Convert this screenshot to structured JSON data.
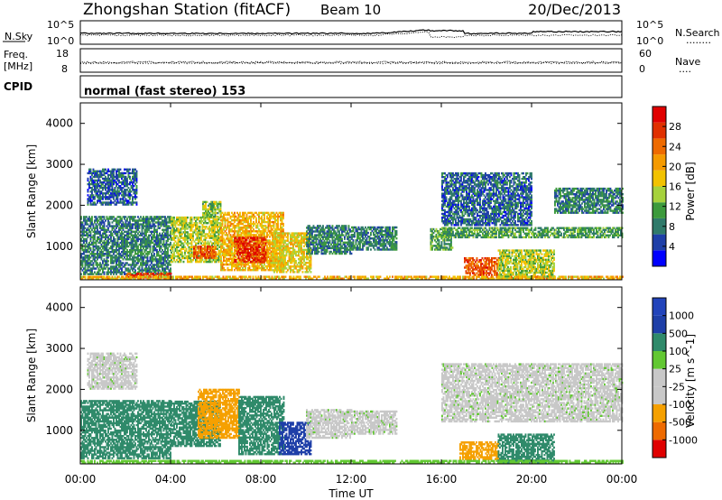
{
  "header": {
    "station": "Zhongshan Station (fitACF)",
    "beam": "Beam 10",
    "date": "20/Dec/2013"
  },
  "top_strip": {
    "left_label": "N.Sky",
    "left_ticks": [
      "10^5",
      "10^0"
    ],
    "right_ticks": [
      "10^5",
      "10^0"
    ],
    "right_label": "N.Search",
    "right_key": "........"
  },
  "freq_strip": {
    "left_label_1": "Freq.",
    "left_label_2": "[MHz]",
    "left_ticks": [
      "18",
      "8"
    ],
    "right_ticks": [
      "60",
      "0"
    ],
    "right_label": "Nave",
    "right_key": "...."
  },
  "cpid": {
    "label": "CPID",
    "value": "normal (fast stereo) 153"
  },
  "colors": {
    "power_scale": [
      "#0000ff",
      "#1e3fa8",
      "#2f7a6a",
      "#3c9a3c",
      "#a6d23c",
      "#f2c200",
      "#f59a00",
      "#ee6a00",
      "#e03000",
      "#e00000"
    ],
    "velocity_scale": [
      "#e00000",
      "#ee6a00",
      "#f5a000",
      "#c8c8c8",
      "#c8c8c8",
      "#62c832",
      "#2f8a6a",
      "#1e3fa8",
      "#2244bb"
    ]
  },
  "chart_data": [
    {
      "type": "heatmap",
      "quantity": "Power",
      "ylabel": "Slant Range [km]",
      "yticks": [
        1000,
        2000,
        3000,
        4000
      ],
      "ylim": [
        180,
        4500
      ],
      "xticks": [
        "00:00",
        "04:00",
        "08:00",
        "12:00",
        "16:00",
        "20:00",
        "00:00"
      ],
      "colorbar": {
        "label": "Power [dB]",
        "ticks": [
          "4",
          "8",
          "12",
          "16",
          "20",
          "24",
          "28"
        ],
        "range": [
          0,
          30
        ]
      },
      "regions": [
        {
          "t0": 0.0,
          "t1": 4.0,
          "r0": 300,
          "r1": 1700,
          "v": 8
        },
        {
          "t0": 0.3,
          "t1": 2.5,
          "r0": 2000,
          "r1": 2900,
          "v": 6
        },
        {
          "t0": 2.0,
          "t1": 4.0,
          "r0": 220,
          "r1": 320,
          "v": 26
        },
        {
          "t0": 4.0,
          "t1": 6.2,
          "r0": 600,
          "r1": 1700,
          "v": 14
        },
        {
          "t0": 5.0,
          "t1": 6.0,
          "r0": 700,
          "r1": 1000,
          "v": 24
        },
        {
          "t0": 5.4,
          "t1": 6.2,
          "r0": 1700,
          "r1": 2100,
          "v": 12
        },
        {
          "t0": 6.2,
          "t1": 9.0,
          "r0": 400,
          "r1": 1800,
          "v": 18
        },
        {
          "t0": 6.8,
          "t1": 8.2,
          "r0": 600,
          "r1": 1200,
          "v": 26
        },
        {
          "t0": 8.5,
          "t1": 10.2,
          "r0": 350,
          "r1": 1300,
          "v": 16
        },
        {
          "t0": 10.0,
          "t1": 12.0,
          "r0": 800,
          "r1": 1500,
          "v": 8
        },
        {
          "t0": 12.0,
          "t1": 14.0,
          "r0": 900,
          "r1": 1450,
          "v": 8
        },
        {
          "t0": 15.5,
          "t1": 16.5,
          "r0": 900,
          "r1": 1400,
          "v": 10
        },
        {
          "t0": 16.0,
          "t1": 24.0,
          "r0": 1200,
          "r1": 1450,
          "v": 10
        },
        {
          "t0": 16.0,
          "t1": 20.0,
          "r0": 1500,
          "r1": 2800,
          "v": 6
        },
        {
          "t0": 17.0,
          "t1": 18.5,
          "r0": 280,
          "r1": 700,
          "v": 24
        },
        {
          "t0": 18.5,
          "t1": 21.0,
          "r0": 200,
          "r1": 900,
          "v": 14
        },
        {
          "t0": 21.0,
          "t1": 24.0,
          "r0": 1800,
          "r1": 2400,
          "v": 8
        },
        {
          "t0": 0.0,
          "t1": 24.0,
          "r0": 190,
          "r1": 240,
          "v": 18
        }
      ]
    },
    {
      "type": "heatmap",
      "quantity": "Velocity",
      "ylabel": "Slant Range [km]",
      "yticks": [
        1000,
        2000,
        3000,
        4000
      ],
      "ylim": [
        180,
        4500
      ],
      "xticks": [
        "00:00",
        "04:00",
        "08:00",
        "12:00",
        "16:00",
        "20:00",
        "00:00"
      ],
      "xlabel": "Time UT",
      "colorbar": {
        "label": "Velocity [m s^-1]",
        "ticks": [
          "-1000",
          "-500",
          "-100",
          "-25",
          "25",
          "100",
          "500",
          "1000"
        ]
      },
      "regions": [
        {
          "t0": 0.0,
          "t1": 4.0,
          "r0": 300,
          "r1": 1700,
          "v": 150
        },
        {
          "t0": 0.3,
          "t1": 2.5,
          "r0": 2000,
          "r1": 2900,
          "v": 0
        },
        {
          "t0": 4.0,
          "t1": 6.2,
          "r0": 600,
          "r1": 1700,
          "v": 150
        },
        {
          "t0": 5.2,
          "t1": 7.0,
          "r0": 800,
          "r1": 2000,
          "v": -150
        },
        {
          "t0": 7.0,
          "t1": 9.0,
          "r0": 400,
          "r1": 1800,
          "v": 150
        },
        {
          "t0": 8.8,
          "t1": 10.2,
          "r0": 400,
          "r1": 1200,
          "v": 700
        },
        {
          "t0": 10.0,
          "t1": 12.0,
          "r0": 800,
          "r1": 1500,
          "v": 0
        },
        {
          "t0": 12.0,
          "t1": 14.0,
          "r0": 900,
          "r1": 1450,
          "v": 0
        },
        {
          "t0": 16.0,
          "t1": 24.0,
          "r0": 1200,
          "r1": 2600,
          "v": 0
        },
        {
          "t0": 16.8,
          "t1": 18.5,
          "r0": 280,
          "r1": 700,
          "v": -150
        },
        {
          "t0": 18.5,
          "t1": 21.0,
          "r0": 200,
          "r1": 900,
          "v": 150
        },
        {
          "t0": 0.0,
          "t1": 24.0,
          "r0": 190,
          "r1": 260,
          "v": 60
        }
      ]
    }
  ]
}
